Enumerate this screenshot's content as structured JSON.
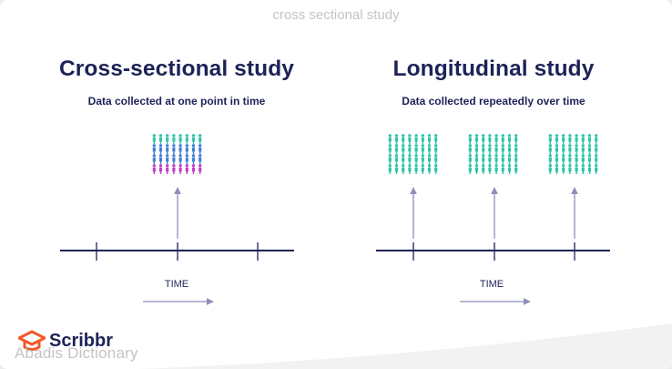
{
  "header": {
    "caption": "cross sectional study"
  },
  "panels": {
    "cross_sectional": {
      "title": "Cross-sectional study",
      "subtitle": "Data collected at one point in time",
      "time_label": "TIME"
    },
    "longitudinal": {
      "title": "Longitudinal study",
      "subtitle": "Data collected repeatedly over time",
      "time_label": "TIME"
    }
  },
  "branding": {
    "logo_text": "Scribbr",
    "watermark": "Abadis Dictionary"
  },
  "colors": {
    "navy": "#1d2257",
    "teal": "#2ec4a8",
    "blue": "#3f7fd6",
    "magenta": "#c13ec6",
    "arrow": "#8b8fb8",
    "logo_orange": "#f05a2a"
  }
}
